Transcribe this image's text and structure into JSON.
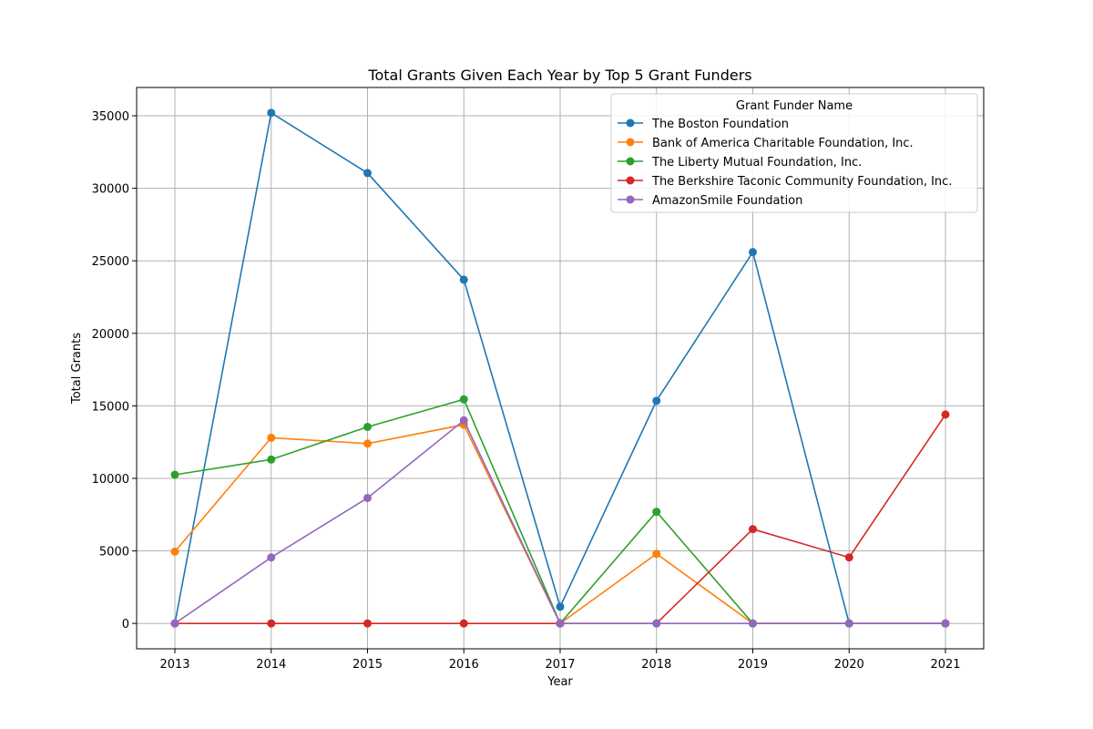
{
  "chart_data": {
    "type": "line",
    "title": "Total Grants Given Each Year by Top 5 Grant Funders",
    "xlabel": "Year",
    "ylabel": "Total Grants",
    "x": [
      "2013",
      "2014",
      "2015",
      "2016",
      "2017",
      "2018",
      "2019",
      "2020",
      "2021"
    ],
    "ylim": [
      -1750,
      36950
    ],
    "yticks": [
      0,
      5000,
      10000,
      15000,
      20000,
      25000,
      30000,
      35000
    ],
    "grid": true,
    "legend": {
      "title": "Grant Funder Name",
      "placement": "top-right"
    },
    "series": [
      {
        "name": "The Boston Foundation",
        "color": "#1f77b4",
        "values": [
          0,
          35200,
          31050,
          23700,
          1150,
          15350,
          25600,
          0,
          0
        ]
      },
      {
        "name": "Bank of America Charitable Foundation, Inc.",
        "color": "#ff7f0e",
        "values": [
          4950,
          12800,
          12400,
          13700,
          0,
          4800,
          0,
          0,
          0
        ]
      },
      {
        "name": "The Liberty Mutual Foundation, Inc.",
        "color": "#2ca02c",
        "values": [
          10250,
          11300,
          13550,
          15450,
          0,
          7700,
          0,
          0,
          0
        ]
      },
      {
        "name": "The Berkshire Taconic Community Foundation, Inc.",
        "color": "#d62728",
        "values": [
          0,
          0,
          0,
          0,
          0,
          0,
          6500,
          4550,
          14400
        ]
      },
      {
        "name": "AmazonSmile Foundation",
        "color": "#9467bd",
        "values": [
          0,
          4550,
          8650,
          14000,
          0,
          0,
          0,
          0,
          0
        ]
      }
    ]
  }
}
